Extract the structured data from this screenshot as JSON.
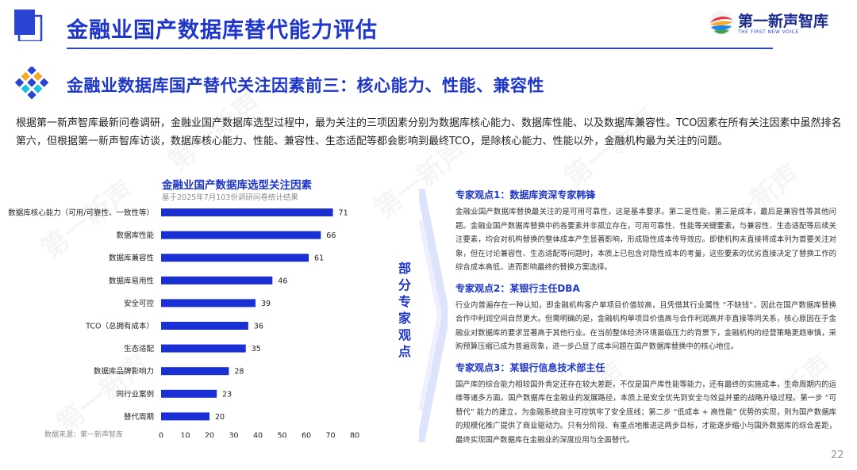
{
  "header": {
    "title": "金融业国产数据库替代能力评估"
  },
  "logo": {
    "name": "第一新声智库",
    "tagline": "THE FIRST NEW VOICE"
  },
  "subtitle": "金融业数据库国产替代关注因素前三：核心能力、性能、兼容性",
  "intro": "根据第一新声智库最新问卷调研，金融业国产数据库选型过程中，最为关注的三项因素分别为数据库核心能力、数据库性能、以及数据库兼容性。TCO因素在所有关注因素中虽然排名第六，但根据第一新声智库访谈，数据库核心能力、性能、兼容性、生态适配等都会影响到最终TCO，是除核心能力、性能以外，金融机构最为关注的问题。",
  "chart_data": {
    "type": "bar",
    "orientation": "horizontal",
    "title": "金融业国产数据库选型关注因素",
    "subtitle": "基于2025年7月103份调研问卷统计结果",
    "categories": [
      "数据库核心能力（可用/可靠性、一致性等）",
      "数据库性能",
      "数据库兼容性",
      "数据库易用性",
      "安全可控",
      "TCO（总拥有成本）",
      "生态适配",
      "数据库品牌影响力",
      "同行业案例",
      "替代周期"
    ],
    "values": [
      71,
      66,
      61,
      46,
      39,
      36,
      35,
      28,
      23,
      20
    ],
    "xlim": [
      0,
      80
    ],
    "xticks": [
      "0",
      "10",
      "20",
      "30",
      "40",
      "50",
      "60",
      "70",
      "80"
    ],
    "bar_color": "#1a30d4",
    "grid": false,
    "source": "数据来源：第一新声智库"
  },
  "side_label": "部分专家观点",
  "experts": [
    {
      "title": "专家观点1：数据库资深专家韩锋",
      "body": "金融业国产数据库替换最关注的是可用可靠性，这是基本要求。第二是性能，第三是成本，最后是兼容性等其他问题。金融业国产数据库替换中的各要素并非孤立存在，可用可靠性、性能等关键要素，与兼容性、生态适配等后续关注要素，均会对机构替换的整体成本产生显著影响，形成隐性成本传导效应。即使机构未直接将成本列为首要关注对象，但在讨论兼容性、生态适配等问题时，本质上已包含对隐性成本的考量，这些要素的优劣直接决定了替换工作的综合成本高低，进而影响最终的替换方案选择。"
    },
    {
      "title": "专家观点2：某银行主任DBA",
      "body": "行业内普遍存在一种认知，即金融机构客户单项目价值较高，且凭借其行业属性 “不缺钱”，因此在国产数据库替换合作中利润空间自然更大。但需明确的是，金融机构单项目价值高与合作利润高并非直接等同关系，核心原因在于金融业对数据库的要求显著高于其他行业。在当前整体经济环境面临压力的背景下，金融机构的经营策略更趋审慎，采购预算压缩已成为普遍现象，进一步凸显了成本问题在国产数据库替换中的核心地位。"
    },
    {
      "title": "专家观点3：某银行信息技术部主任",
      "body": "国产库的综合能力相较国外肯定还存在较大差距，不仅是国产库性能等能力，还有最终的实施成本，生命周期内的运维等诸多方面。国产数据库在金融业的发展路径，本质上是安全优先到安全与效益并重的战略升级过程。第一步 “可替代” 能力的建立，为金融系统自主可控筑牢了安全底线；第二步 “低成本 + 高性能” 优势的实现，则为国产数据库的规模化推广提供了商业驱动力。只有分阶段、有重点地推进这两步目标，才能逐步缩小与国外数据库的综合差距，最终实现国产数据库在金融业的深度应用与全面替代。"
    }
  ],
  "watermark": "第一新声",
  "page_number": "22"
}
